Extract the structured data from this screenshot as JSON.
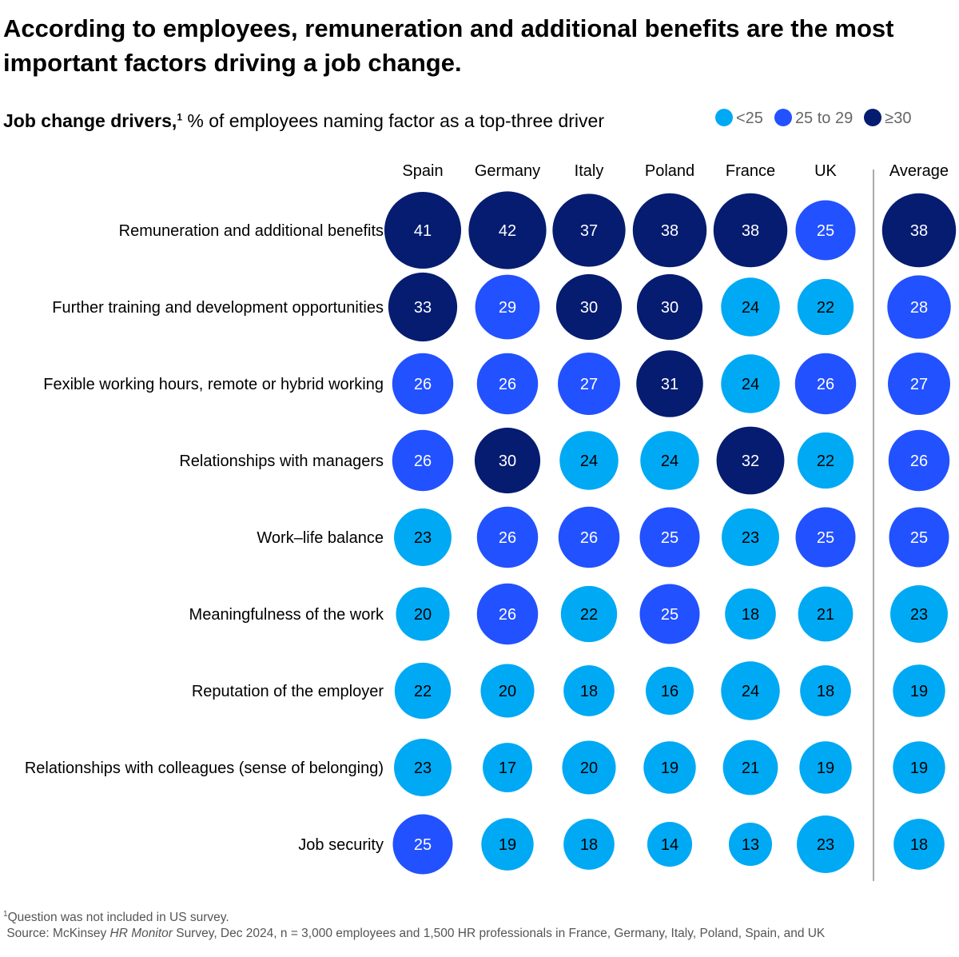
{
  "title": "According to employees, remuneration and additional benefits are the most important factors driving a job change.",
  "subtitle": {
    "bold": "Job change drivers,",
    "sup": "1",
    "rest": " % of employees naming factor as a top-three driver"
  },
  "legend": [
    {
      "label": "<25",
      "color": "#00A9F4"
    },
    {
      "label": "25 to 29",
      "color": "#2251FF"
    },
    {
      "label": "≥30",
      "color": "#051C70"
    }
  ],
  "chart_data": {
    "type": "heatmap",
    "columns": [
      "Spain",
      "Germany",
      "Italy",
      "Poland",
      "France",
      "UK",
      "Average"
    ],
    "rows": [
      "Remuneration and additional benefits",
      "Further training and development opportunities",
      "Fexible working hours, remote or hybrid working",
      "Relationships with managers",
      "Work–life balance",
      "Meaningfulness of the work",
      "Reputation of the employer",
      "Relationships with colleagues (sense of belonging)",
      "Job security"
    ],
    "values": [
      [
        41,
        42,
        37,
        38,
        38,
        25,
        38
      ],
      [
        33,
        29,
        30,
        30,
        24,
        22,
        28
      ],
      [
        26,
        26,
        27,
        31,
        24,
        26,
        27
      ],
      [
        26,
        30,
        24,
        24,
        32,
        22,
        26
      ],
      [
        23,
        26,
        26,
        25,
        23,
        25,
        25
      ],
      [
        20,
        26,
        22,
        25,
        18,
        21,
        23
      ],
      [
        22,
        20,
        18,
        16,
        24,
        18,
        19
      ],
      [
        23,
        17,
        20,
        19,
        21,
        19,
        19
      ],
      [
        25,
        19,
        18,
        14,
        13,
        23,
        18
      ]
    ],
    "color_bins": [
      {
        "max": 24,
        "color": "#00A9F4"
      },
      {
        "min": 25,
        "max": 29,
        "color": "#2251FF"
      },
      {
        "min": 30,
        "color": "#051C70"
      }
    ],
    "size_encoding": "bubble area proportional to value"
  },
  "footnote": {
    "sup": "1",
    "text": "Question was not included in US survey."
  },
  "source": {
    "pre": "Source: McKinsey ",
    "italic": "HR Monitor",
    "post": " Survey, Dec 2024, n = 3,000 employees and 1,500 HR professionals in France, Germany, Italy, Poland, Spain, and UK"
  }
}
